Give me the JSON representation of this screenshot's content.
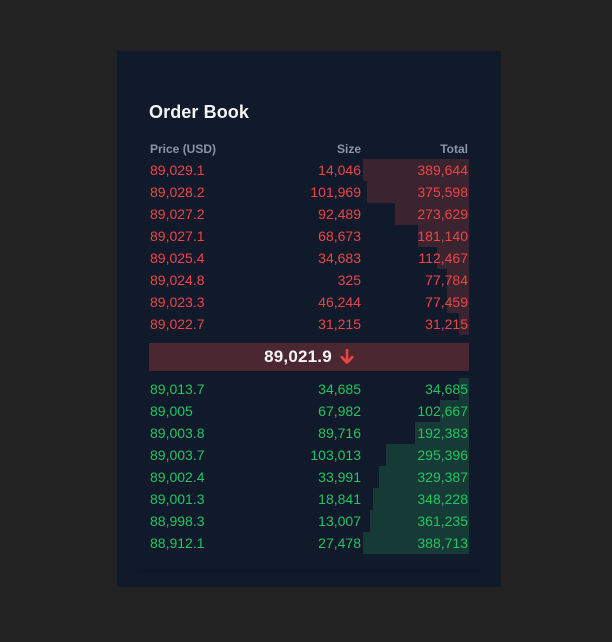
{
  "title": "Order Book",
  "columns": {
    "price": "Price (USD)",
    "size": "Size",
    "total": "Total"
  },
  "colors": {
    "ask": "#ef4444",
    "bid": "#22c55e",
    "ask_depth": "#3a2430",
    "bid_depth": "#163a36",
    "mid_bg": "#4a2731"
  },
  "asks": [
    {
      "price": "89,029.1",
      "size": "14,046",
      "total": "389,644",
      "depth_fraction": 0.33
    },
    {
      "price": "89,028.2",
      "size": "101,969",
      "total": "375,598",
      "depth_fraction": 0.32
    },
    {
      "price": "89,027.2",
      "size": "92,489",
      "total": "273,629",
      "depth_fraction": 0.23
    },
    {
      "price": "89,027.1",
      "size": "68,673",
      "total": "181,140",
      "depth_fraction": 0.16
    },
    {
      "price": "89,025.4",
      "size": "34,683",
      "total": "112,467",
      "depth_fraction": 0.1
    },
    {
      "price": "89,024.8",
      "size": "325",
      "total": "77,784",
      "depth_fraction": 0.07
    },
    {
      "price": "89,023.3",
      "size": "46,244",
      "total": "77,459",
      "depth_fraction": 0.07
    },
    {
      "price": "89,022.7",
      "size": "31,215",
      "total": "31,215",
      "depth_fraction": 0.03
    }
  ],
  "mid": {
    "price": "89,021.9",
    "direction_icon": "arrow-down-icon"
  },
  "bids": [
    {
      "price": "89,013.7",
      "size": "34,685",
      "total": "34,685",
      "depth_fraction": 0.03
    },
    {
      "price": "89,005",
      "size": "67,982",
      "total": "102,667",
      "depth_fraction": 0.09
    },
    {
      "price": "89,003.8",
      "size": "89,716",
      "total": "192,383",
      "depth_fraction": 0.17
    },
    {
      "price": "89,003.7",
      "size": "103,013",
      "total": "295,396",
      "depth_fraction": 0.26
    },
    {
      "price": "89,002.4",
      "size": "33,991",
      "total": "329,387",
      "depth_fraction": 0.28
    },
    {
      "price": "89,001.3",
      "size": "18,841",
      "total": "348,228",
      "depth_fraction": 0.3
    },
    {
      "price": "88,998.3",
      "size": "13,007",
      "total": "361,235",
      "depth_fraction": 0.31
    },
    {
      "price": "88,912.1",
      "size": "27,478",
      "total": "388,713",
      "depth_fraction": 0.33
    }
  ]
}
